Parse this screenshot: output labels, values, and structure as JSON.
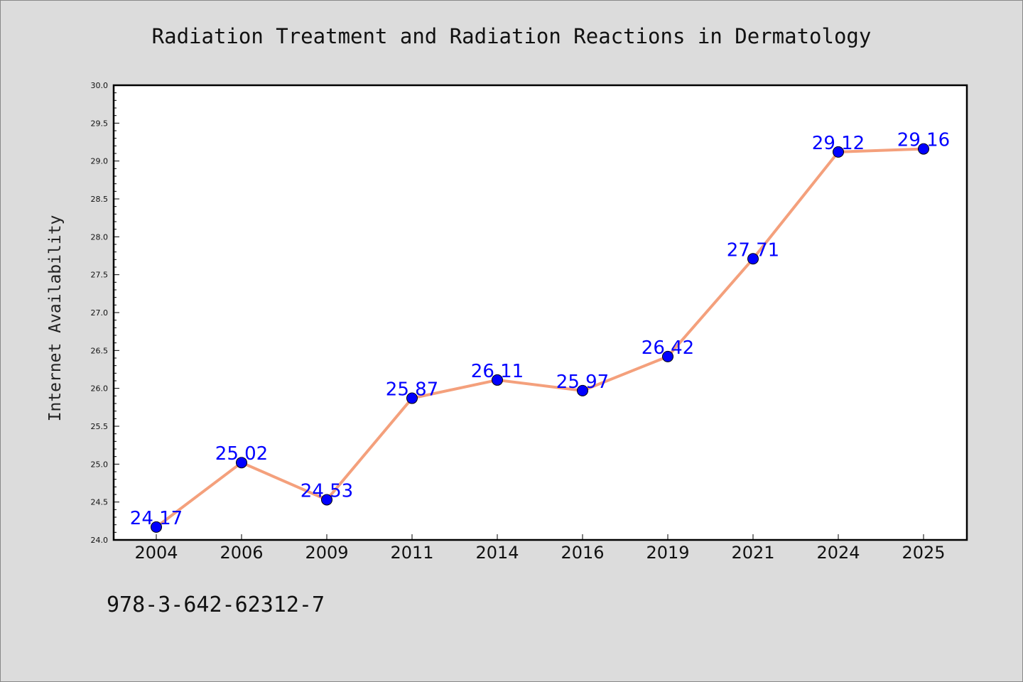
{
  "chart_data": {
    "type": "line",
    "title": "Radiation Treatment and Radiation Reactions in Dermatology",
    "xlabel": "",
    "ylabel": "Internet Availability",
    "categories": [
      "2004",
      "2006",
      "2009",
      "2011",
      "2014",
      "2016",
      "2019",
      "2021",
      "2024",
      "2025"
    ],
    "series": [
      {
        "values": [
          24.17,
          25.02,
          24.53,
          25.87,
          26.11,
          25.97,
          26.42,
          27.71,
          29.12,
          29.16
        ],
        "data_labels": [
          "24.17",
          "25.02",
          "24.53",
          "25.87",
          "26.11",
          "25.97",
          "26.42",
          "27.71",
          "29.12",
          "29.16"
        ],
        "line_color": "#f4a07c",
        "marker_color": "#0000ff"
      }
    ],
    "ylim": [
      24.0,
      30.0
    ],
    "yticks": [
      "24.0",
      "24.5",
      "25.0",
      "25.5",
      "26.0",
      "26.5",
      "27.0",
      "27.5",
      "28.0",
      "28.5",
      "29.0",
      "29.5",
      "30.0"
    ],
    "grid": false,
    "legend": "none"
  },
  "footer_text": "978-3-642-62312-7",
  "colors": {
    "background": "#dcdcdc",
    "plot_background": "#ffffff",
    "label_color": "#0000ff"
  }
}
